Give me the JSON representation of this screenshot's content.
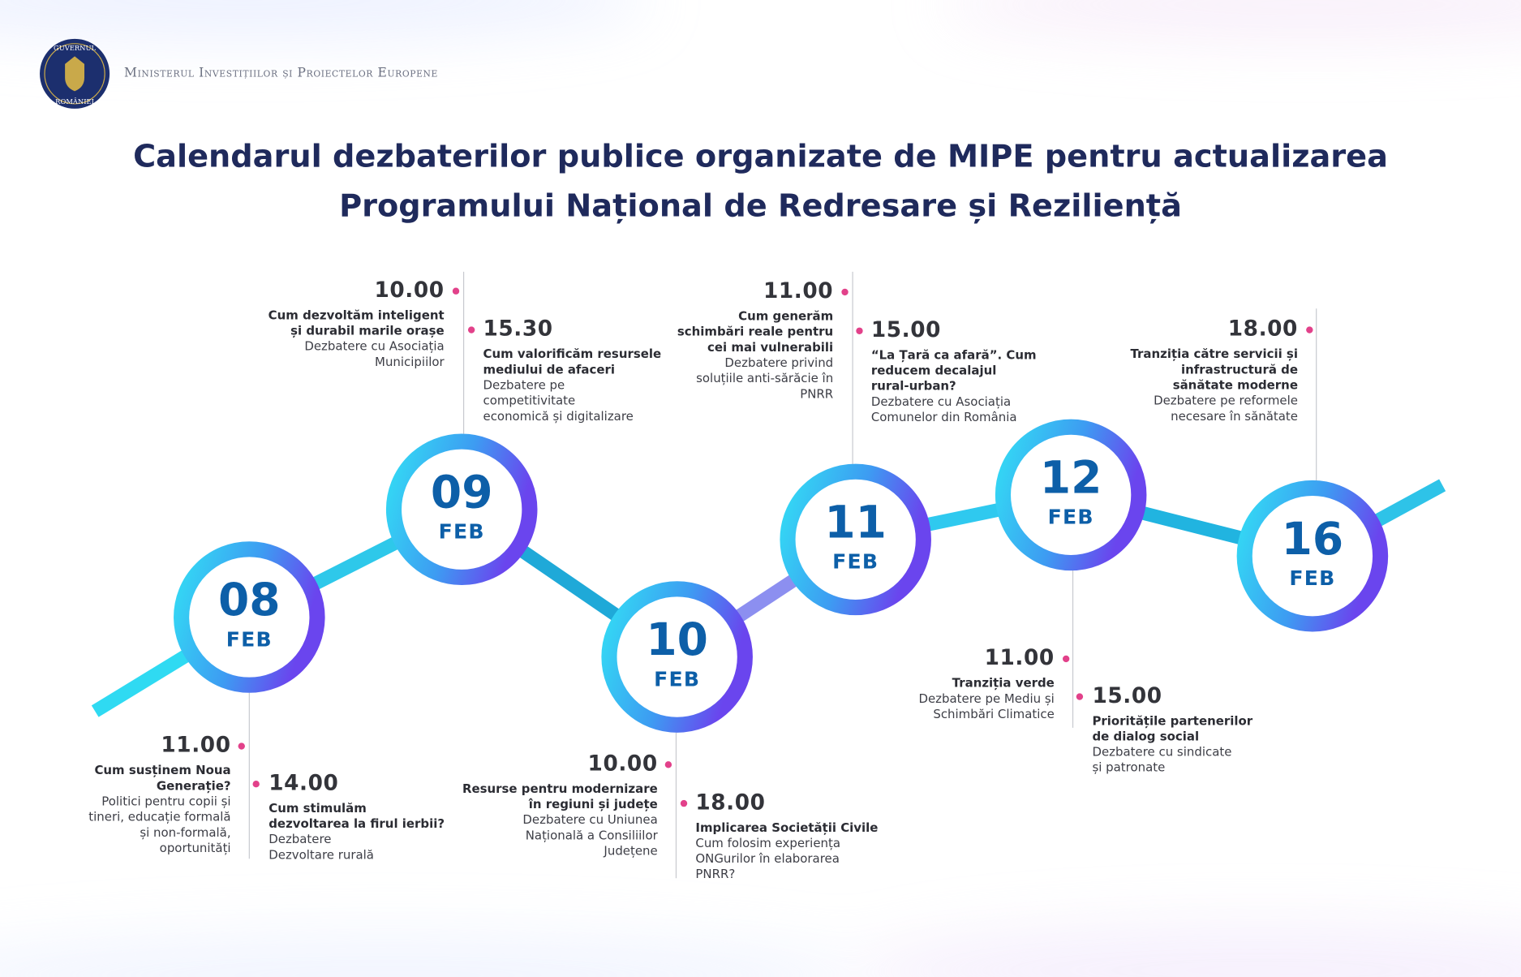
{
  "header": {
    "logo_top": "GUVERNUL",
    "logo_bottom": "ROMÂNIEI",
    "ministry": "Ministerul Investițiilor și Proiectelor Europene",
    "title": [
      "Calendarul dezbaterilor publice organizate de MIPE pentru actualizarea",
      "Programului Național de Redresare și Reziliență"
    ]
  },
  "days": [
    {
      "day": "08",
      "month": "FEB",
      "events": [
        {
          "time": "11.00",
          "title": [
            "Cum susținem Noua",
            "Generație?"
          ],
          "description": [
            "Politici pentru copii și",
            "tineri, educație formală",
            "și non-formală,",
            "oportunități"
          ]
        },
        {
          "time": "14.00",
          "title": [
            "Cum stimulăm",
            "dezvoltarea la firul ierbii?"
          ],
          "description": [
            "Dezbatere",
            "Dezvoltare rurală"
          ]
        }
      ]
    },
    {
      "day": "09",
      "month": "FEB",
      "events": [
        {
          "time": "10.00",
          "title": [
            "Cum dezvoltăm inteligent",
            "și durabil marile orașe"
          ],
          "description": [
            "Dezbatere cu Asociația",
            "Municipiilor"
          ]
        },
        {
          "time": "15.30",
          "title": [
            "Cum valorificăm resursele",
            "mediului de afaceri"
          ],
          "description": [
            "Dezbatere pe",
            "competitivitate",
            "economică și digitalizare"
          ]
        }
      ]
    },
    {
      "day": "10",
      "month": "FEB",
      "events": [
        {
          "time": "10.00",
          "title": [
            "Resurse pentru modernizare",
            "în regiuni și județe"
          ],
          "description": [
            "Dezbatere cu Uniunea",
            "Națională a Consiliilor",
            "Județene"
          ]
        },
        {
          "time": "18.00",
          "title": [
            "Implicarea Societății Civile"
          ],
          "description": [
            "Cum folosim experiența",
            "ONGurilor în elaborarea",
            "PNRR?"
          ]
        }
      ]
    },
    {
      "day": "11",
      "month": "FEB",
      "events": [
        {
          "time": "11.00",
          "title": [
            "Cum generăm",
            "schimbări reale pentru",
            "cei mai vulnerabili"
          ],
          "description": [
            "Dezbatere privind",
            "soluțiile anti-sărăcie în",
            "PNRR"
          ]
        },
        {
          "time": "15.00",
          "title": [
            "“La Țară ca afară”. Cum",
            "reducem decalajul",
            "rural-urban?"
          ],
          "description": [
            "Dezbatere cu Asociația",
            "Comunelor din România"
          ]
        }
      ]
    },
    {
      "day": "12",
      "month": "FEB",
      "events": [
        {
          "time": "11.00",
          "title": [
            "Tranziția verde"
          ],
          "description": [
            "Dezbatere pe Mediu și",
            "Schimbări Climatice"
          ]
        },
        {
          "time": "15.00",
          "title": [
            "Prioritățile partenerilor",
            "de dialog social"
          ],
          "description": [
            "Dezbatere cu sindicate",
            "și patronate"
          ]
        }
      ]
    },
    {
      "day": "16",
      "month": "FEB",
      "events": [
        {
          "time": "18.00",
          "title": [
            "Tranziția către servicii și",
            "infrastructură de",
            "sănătate moderne"
          ],
          "description": [
            "Dezbatere pe reformele",
            "necesare în sănătate"
          ]
        }
      ]
    }
  ]
}
